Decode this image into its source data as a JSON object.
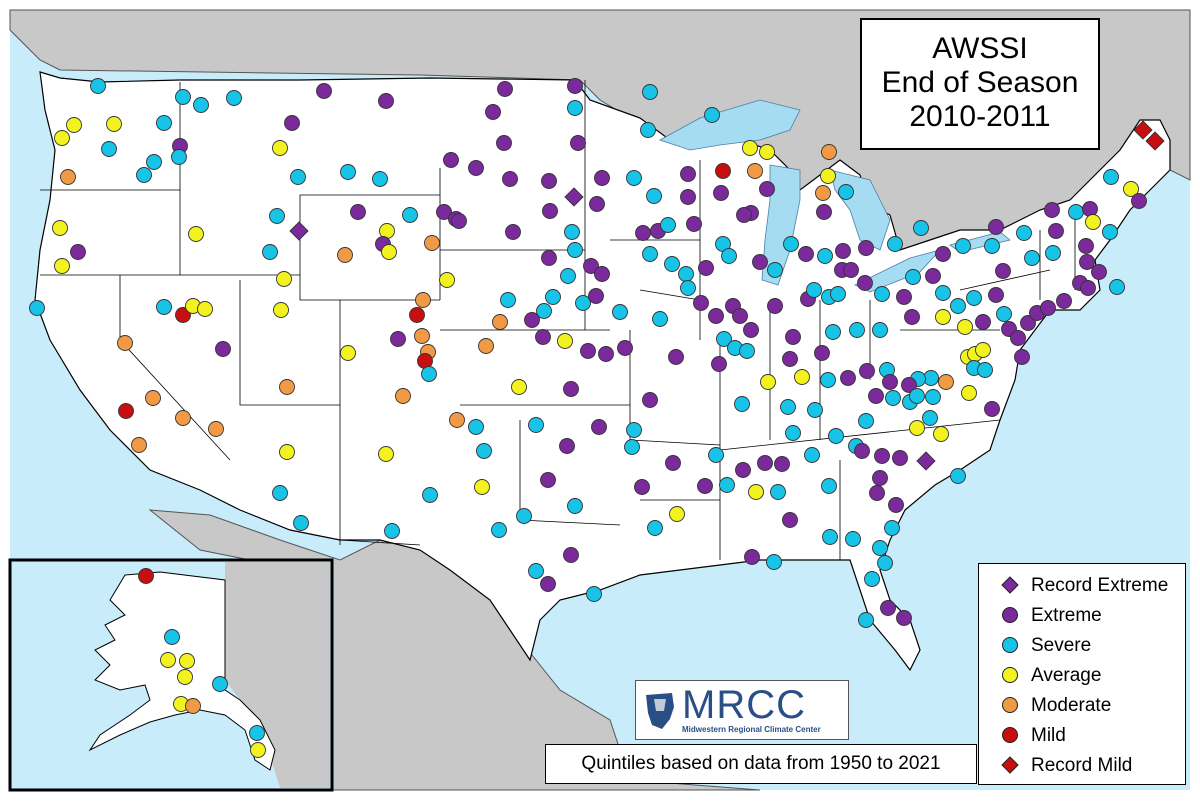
{
  "title": {
    "line1": "AWSSI",
    "line2": "End of Season",
    "line3": "2010-2011"
  },
  "footnote": "Quintiles based on data from 1950 to 2021",
  "logo": {
    "name": "MRCC",
    "subtitle": "Midwestern Regional Climate Center"
  },
  "legend": [
    {
      "key": "record_extreme",
      "label": "Record Extreme",
      "color": "#7b2a9c",
      "shape": "diamond"
    },
    {
      "key": "extreme",
      "label": "Extreme",
      "color": "#7b2a9c",
      "shape": "circle"
    },
    {
      "key": "severe",
      "label": "Severe",
      "color": "#17c3e6",
      "shape": "circle"
    },
    {
      "key": "average",
      "label": "Average",
      "color": "#f2f21e",
      "shape": "circle"
    },
    {
      "key": "moderate",
      "label": "Moderate",
      "color": "#f19a46",
      "shape": "circle"
    },
    {
      "key": "mild",
      "label": "Mild",
      "color": "#c80f0f",
      "shape": "circle"
    },
    {
      "key": "record_mild",
      "label": "Record Mild",
      "color": "#c80f0f",
      "shape": "diamond"
    }
  ],
  "colors": {
    "water": "#c9ecfb",
    "land_us": "#ffffff",
    "land_other": "#c8c8c8",
    "lakes": "#a6dcf2",
    "border": "#000000"
  }
}
